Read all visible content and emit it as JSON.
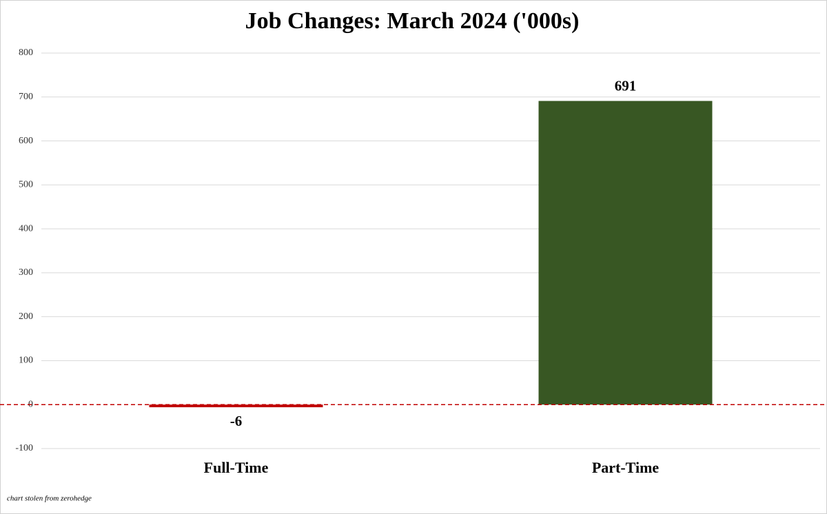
{
  "chart_data": {
    "type": "bar",
    "title": "Job Changes: March 2024 ('000s)",
    "categories": [
      "Full-Time",
      "Part-Time"
    ],
    "values": [
      -6,
      691
    ],
    "colors": [
      "#c00000",
      "#385723"
    ],
    "ylim": [
      -100,
      800
    ],
    "yticks": [
      -100,
      0,
      100,
      200,
      300,
      400,
      500,
      600,
      700,
      800
    ],
    "grid": true,
    "zero_line_color": "#c00000",
    "annotation": "chart stolen from zerohedge"
  }
}
